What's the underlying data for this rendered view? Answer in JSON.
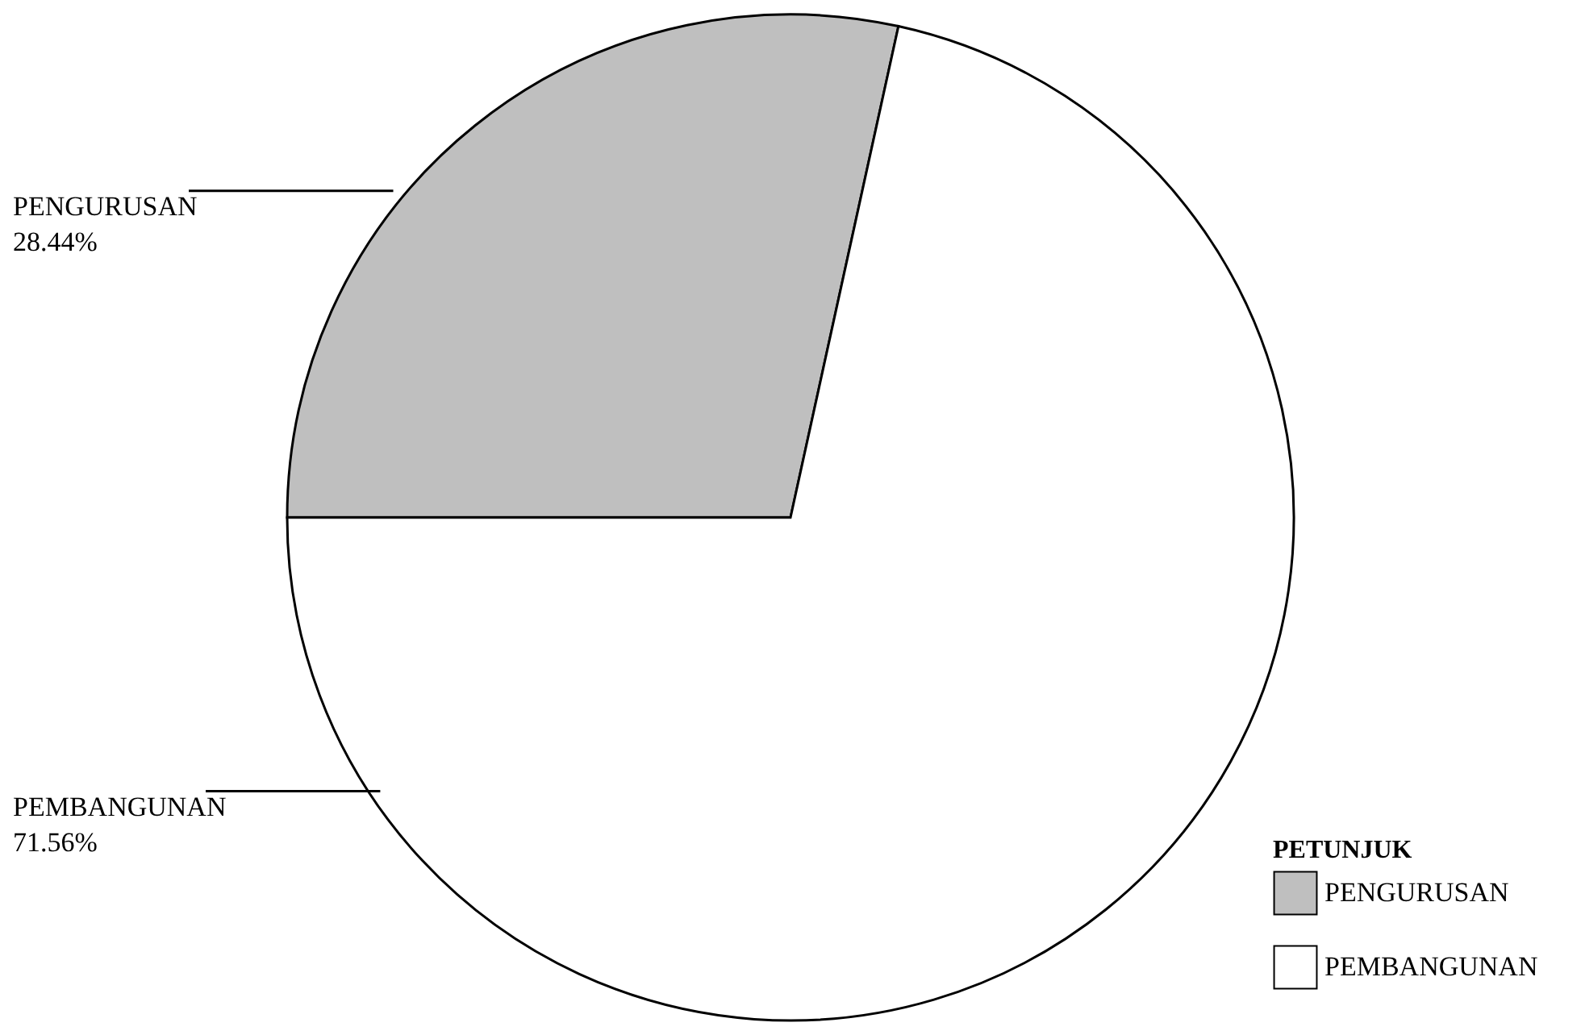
{
  "chart_data": {
    "type": "pie",
    "legend_title": "PETUNJUK",
    "categories": [
      "PENGURUSAN",
      "PEMBANGUNAN"
    ],
    "values": [
      28.44,
      71.56
    ],
    "colors": [
      "#bfbfbf",
      "#ffffff"
    ],
    "value_labels": [
      "28.44%",
      "71.56%"
    ],
    "legend": "bottom right"
  }
}
